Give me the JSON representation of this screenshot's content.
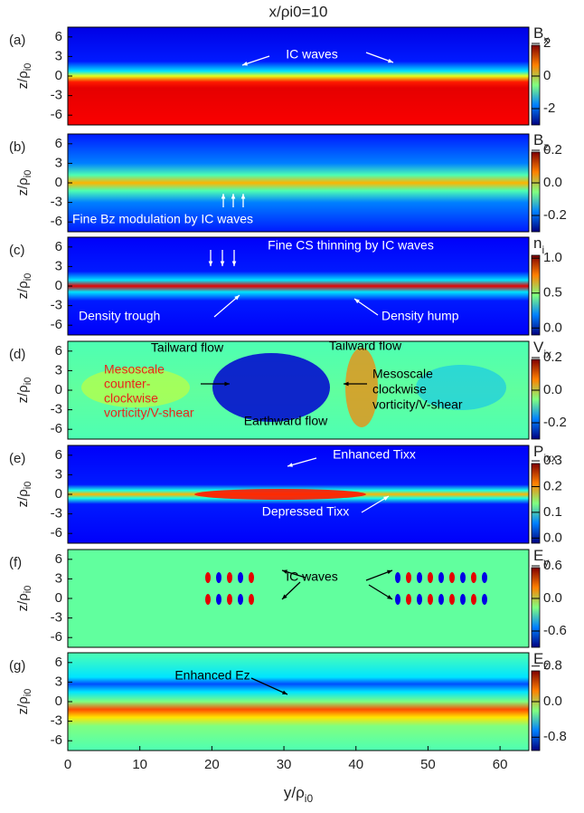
{
  "chart_data": [
    {
      "type": "heatmap",
      "title": "x/ρi0=10",
      "panel_label": "(a)",
      "ylabel": {
        "text": "z/ρ",
        "sub": "i0"
      },
      "xlim": [
        0,
        64
      ],
      "ylim": [
        -7.5,
        7.5
      ],
      "yticks": [
        6,
        3,
        0,
        -3,
        -6
      ],
      "colorbar": {
        "label": {
          "text": "B",
          "sub": "x"
        },
        "clim": [
          -3,
          3
        ],
        "ticks": [
          2,
          0,
          -2
        ]
      },
      "annotations": [
        {
          "text": "IC waves",
          "color": "#ffffff"
        }
      ]
    },
    {
      "type": "heatmap",
      "panel_label": "(b)",
      "ylabel": {
        "text": "z/ρ",
        "sub": "i0"
      },
      "xlim": [
        0,
        64
      ],
      "ylim": [
        -7.5,
        7.5
      ],
      "yticks": [
        6,
        3,
        0,
        -3,
        -6
      ],
      "colorbar": {
        "label": {
          "text": "B",
          "sub": "z"
        },
        "clim": [
          -0.3,
          0.3
        ],
        "ticks": [
          0.2,
          {
            "value": 0,
            "label": "0.0"
          },
          -0.2
        ]
      },
      "annotations": [
        {
          "text": "Fine Bz modulation by IC waves",
          "color": "#ffffff"
        }
      ]
    },
    {
      "type": "heatmap",
      "panel_label": "(c)",
      "ylabel": {
        "text": "z/ρ",
        "sub": "i0"
      },
      "xlim": [
        0,
        64
      ],
      "ylim": [
        -7.5,
        7.5
      ],
      "yticks": [
        6,
        3,
        0,
        -3,
        -6
      ],
      "colorbar": {
        "label": {
          "text": "n",
          "sub": "i"
        },
        "clim": [
          -0.1,
          1.3
        ],
        "ticks": [
          {
            "value": 1,
            "label": "1.0"
          },
          0.5,
          {
            "value": 0,
            "label": "0.0"
          }
        ]
      },
      "annotations": [
        {
          "text": "Fine CS thinning by IC waves",
          "color": "#ffffff"
        },
        {
          "text": "Density trough",
          "color": "#ffffff"
        },
        {
          "text": "Density hump",
          "color": "#ffffff"
        }
      ]
    },
    {
      "type": "heatmap",
      "panel_label": "(d)",
      "ylabel": {
        "text": "z/ρ",
        "sub": "i0"
      },
      "xlim": [
        0,
        64
      ],
      "ylim": [
        -7.5,
        7.5
      ],
      "yticks": [
        6,
        3,
        0,
        -3,
        -6
      ],
      "colorbar": {
        "label": {
          "text": "V",
          "sub": "ix"
        },
        "clim": [
          -0.3,
          0.3
        ],
        "ticks": [
          0.2,
          {
            "value": 0,
            "label": "0.0"
          },
          -0.2
        ]
      },
      "annotations": [
        {
          "text": "Tailward flow",
          "color": "#000000"
        },
        {
          "text": "Tailward flow",
          "color": "#000000"
        },
        {
          "text": "Mesoscale",
          "color": "#e8231a"
        },
        {
          "text": "counter-",
          "color": "#e8231a"
        },
        {
          "text": "clockwise",
          "color": "#e8231a"
        },
        {
          "text": "vorticity/V-shear",
          "color": "#e8231a"
        },
        {
          "text": "Mesoscale",
          "color": "#000000"
        },
        {
          "text": "clockwise",
          "color": "#000000"
        },
        {
          "text": "vorticity/V-shear",
          "color": "#000000"
        },
        {
          "text": "Earthward flow",
          "color": "#000000"
        }
      ]
    },
    {
      "type": "heatmap",
      "panel_label": "(e)",
      "ylabel": {
        "text": "z/ρ",
        "sub": "i0"
      },
      "xlim": [
        0,
        64
      ],
      "ylim": [
        -7.5,
        7.5
      ],
      "yticks": [
        6,
        3,
        0,
        -3,
        -6
      ],
      "colorbar": {
        "label": {
          "text": "P",
          "sub": "ixx"
        },
        "clim": [
          -0.02,
          0.36
        ],
        "ticks": [
          0.3,
          0.2,
          0.1,
          {
            "value": 0,
            "label": "0.0"
          }
        ]
      },
      "annotations": [
        {
          "text": "Enhanced Tixx",
          "color": "#ffffff"
        },
        {
          "text": "Depressed Tixx",
          "color": "#ffffff"
        }
      ]
    },
    {
      "type": "heatmap",
      "panel_label": "(f)",
      "ylabel": {
        "text": "z/ρ",
        "sub": "i0"
      },
      "xlim": [
        0,
        64
      ],
      "ylim": [
        -7.5,
        7.5
      ],
      "yticks": [
        6,
        3,
        0,
        -3,
        -6
      ],
      "colorbar": {
        "label": {
          "text": "E",
          "sub": "y"
        },
        "clim": [
          -0.9,
          0.9
        ],
        "ticks": [
          0.6,
          {
            "value": 0,
            "label": "0.0"
          },
          -0.6
        ]
      },
      "annotations": [
        {
          "text": "IC waves",
          "color": "#000000"
        }
      ]
    },
    {
      "type": "heatmap",
      "panel_label": "(g)",
      "ylabel": {
        "text": "z/ρ",
        "sub": "i0"
      },
      "xlim": [
        0,
        64
      ],
      "ylim": [
        -7.5,
        7.5
      ],
      "yticks": [
        6,
        3,
        0,
        -3,
        -6
      ],
      "xlabel": {
        "text": "y/ρ",
        "sub": "i0"
      },
      "xticks": [
        0,
        10,
        20,
        30,
        40,
        50,
        60
      ],
      "colorbar": {
        "label": {
          "text": "E",
          "sub": "z"
        },
        "clim": [
          -1.1,
          1.1
        ],
        "ticks": [
          0.8,
          {
            "value": 0,
            "label": "0.0"
          },
          -0.8
        ]
      },
      "annotations": [
        {
          "text": "Enhanced Ez",
          "color": "#000000"
        }
      ]
    }
  ]
}
